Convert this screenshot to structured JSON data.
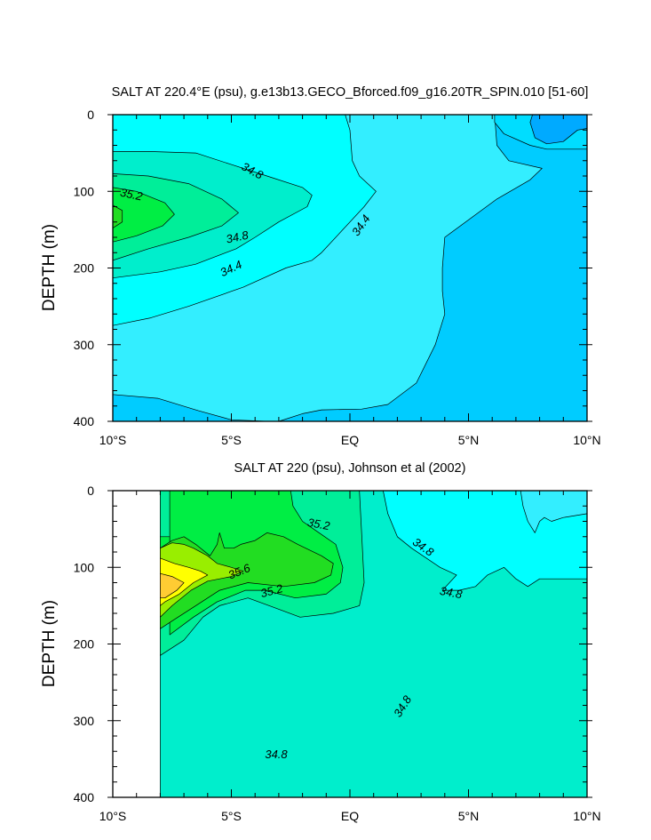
{
  "figure": {
    "colors": {
      "s33_6": "#00aaff",
      "s34_0": "#00ccff",
      "s34_2": "#00ddff",
      "s34_4": "#33eeff",
      "s34_6": "#00ffff",
      "s34_8": "#00eecc",
      "s35_0": "#00ee99",
      "s35_2": "#00ee44",
      "s35_4": "#22dd22",
      "s35_6": "#99ee00",
      "s35_8": "#ffff00",
      "s36_0": "#ffcc33",
      "line": "#000000"
    }
  },
  "chart_data": [
    {
      "type": "contour",
      "title": "SALT AT 220.4°E (psu), g.e13b13.GECO_Bforced.f09_g16.20TR_SPIN.010 [51-60]",
      "ylabel": "DEPTH (m)",
      "xlabel": "",
      "x_ticks": [
        {
          "value": -10,
          "label": "10°S"
        },
        {
          "value": -5,
          "label": "5°S"
        },
        {
          "value": 0,
          "label": "EQ"
        },
        {
          "value": 5,
          "label": "5°N"
        },
        {
          "value": 10,
          "label": "10°N"
        }
      ],
      "y_ticks": [
        0,
        100,
        200,
        300,
        400
      ],
      "xlim": [
        -10,
        10
      ],
      "ylim": [
        0,
        400
      ],
      "y_inverted": true,
      "data_extent_lat": [
        -10,
        10
      ],
      "contour_labels": [
        "34.8",
        "35.2",
        "34.8",
        "34.4",
        "34.4"
      ],
      "regions": [
        {
          "level": 34.0,
          "color_key": "s34_0",
          "points": [
            [
              -10,
              0
            ],
            [
              10,
              0
            ],
            [
              10,
              400
            ],
            [
              -10,
              400
            ]
          ]
        },
        {
          "level": 34.4,
          "color_key": "s34_4",
          "points": [
            [
              -10,
              0
            ],
            [
              6.1,
              0
            ],
            [
              6.2,
              40
            ],
            [
              6.7,
              60
            ],
            [
              8.1,
              70
            ],
            [
              7.6,
              85
            ],
            [
              6.2,
              110
            ],
            [
              4.0,
              160
            ],
            [
              3.9,
              200
            ],
            [
              3.9,
              230
            ],
            [
              4.0,
              260
            ],
            [
              3.6,
              300
            ],
            [
              2.8,
              350
            ],
            [
              1.6,
              378
            ],
            [
              0.5,
              384
            ],
            [
              -1.2,
              385
            ],
            [
              -2.0,
              390
            ],
            [
              -3.0,
              400
            ],
            [
              -3.5,
              400
            ],
            [
              -5.0,
              398
            ],
            [
              -6.4,
              386
            ],
            [
              -8.1,
              370
            ],
            [
              -10,
              365
            ]
          ]
        },
        {
          "level": 34.6,
          "color_key": "s34_6",
          "points": [
            [
              -10,
              0
            ],
            [
              -0.2,
              0
            ],
            [
              0,
              20
            ],
            [
              0.1,
              60
            ],
            [
              0.4,
              80
            ],
            [
              1.1,
              100
            ],
            [
              0.6,
              120
            ],
            [
              -0.3,
              150
            ],
            [
              -1.2,
              180
            ],
            [
              -1.6,
              190
            ],
            [
              -2.7,
              200
            ],
            [
              -4.5,
              225
            ],
            [
              -6.8,
              250
            ],
            [
              -8.4,
              265
            ],
            [
              -10,
              275
            ]
          ]
        },
        {
          "level": 34.8,
          "color_key": "s34_8",
          "points": [
            [
              -10,
              48
            ],
            [
              -8.5,
              48
            ],
            [
              -6.5,
              50
            ],
            [
              -5.0,
              65
            ],
            [
              -3.5,
              80
            ],
            [
              -2.0,
              95
            ],
            [
              -1.6,
              105
            ],
            [
              -1.8,
              120
            ],
            [
              -3.0,
              140
            ],
            [
              -4.0,
              160
            ],
            [
              -4.8,
              175
            ],
            [
              -6.5,
              195
            ],
            [
              -8.0,
              205
            ],
            [
              -10,
              213
            ]
          ]
        },
        {
          "level": 35.0,
          "color_key": "s35_0",
          "points": [
            [
              -10,
              77
            ],
            [
              -8.5,
              80
            ],
            [
              -6.8,
              90
            ],
            [
              -5.4,
              110
            ],
            [
              -4.7,
              128
            ],
            [
              -5.4,
              145
            ],
            [
              -6.8,
              160
            ],
            [
              -8.5,
              175
            ],
            [
              -10,
              190
            ]
          ]
        },
        {
          "level": 35.2,
          "color_key": "s35_2",
          "points": [
            [
              -10,
              95
            ],
            [
              -9.0,
              100
            ],
            [
              -7.8,
              115
            ],
            [
              -7.4,
              130
            ],
            [
              -7.9,
              145
            ],
            [
              -9.0,
              158
            ],
            [
              -10,
              166
            ]
          ]
        },
        {
          "level": 35.4,
          "color_key": "s35_4",
          "points": [
            [
              -10,
              118
            ],
            [
              -9.6,
              125
            ],
            [
              -9.6,
              140
            ],
            [
              -10,
              148
            ]
          ]
        },
        {
          "level": 33.8,
          "color_key": "s34_2",
          "points": [
            [
              6.1,
              0
            ],
            [
              10,
              0
            ],
            [
              10,
              45
            ],
            [
              8.3,
              45
            ],
            [
              7.6,
              40
            ],
            [
              6.5,
              25
            ],
            [
              6.1,
              10
            ]
          ]
        },
        {
          "level": 33.6,
          "color_key": "s33_6",
          "points": [
            [
              7.7,
              0
            ],
            [
              10,
              0
            ],
            [
              10,
              18
            ],
            [
              9.6,
              20
            ],
            [
              9.0,
              35
            ],
            [
              8.3,
              38
            ],
            [
              7.8,
              30
            ],
            [
              7.6,
              10
            ]
          ]
        }
      ]
    },
    {
      "type": "contour",
      "title": "SALT AT 220 (psu), Johnson et al (2002)",
      "ylabel": "DEPTH (m)",
      "xlabel": "",
      "x_ticks": [
        {
          "value": -10,
          "label": "10°S"
        },
        {
          "value": -5,
          "label": "5°S"
        },
        {
          "value": 0,
          "label": "EQ"
        },
        {
          "value": 5,
          "label": "5°N"
        },
        {
          "value": 10,
          "label": "10°N"
        }
      ],
      "y_ticks": [
        0,
        100,
        200,
        300,
        400
      ],
      "xlim": [
        -10,
        10
      ],
      "ylim": [
        0,
        400
      ],
      "y_inverted": true,
      "data_extent_lat": [
        -8,
        10
      ],
      "contour_labels": [
        "35.2",
        "34.8",
        "35.6",
        "35.2",
        "34.8",
        "34.8",
        "34.8"
      ],
      "regions": [
        {
          "level": 34.8,
          "color_key": "s34_8",
          "points": [
            [
              -8,
              0
            ],
            [
              10,
              0
            ],
            [
              10,
              400
            ],
            [
              -8,
              400
            ]
          ]
        },
        {
          "level": 34.6,
          "color_key": "s34_6",
          "points": [
            [
              1.4,
              0
            ],
            [
              10,
              0
            ],
            [
              10,
              115
            ],
            [
              8.0,
              115
            ],
            [
              7.5,
              125
            ],
            [
              7.0,
              115
            ],
            [
              6.5,
              100
            ],
            [
              5.8,
              110
            ],
            [
              5.3,
              125
            ],
            [
              4.6,
              130
            ],
            [
              3.9,
              130
            ],
            [
              4.5,
              110
            ],
            [
              3.8,
              100
            ],
            [
              2.6,
              75
            ],
            [
              2.0,
              60
            ],
            [
              1.6,
              30
            ]
          ]
        },
        {
          "level": 34.4,
          "color_key": "s34_4",
          "points": [
            [
              7.2,
              0
            ],
            [
              10,
              0
            ],
            [
              10,
              30
            ],
            [
              9.0,
              35
            ],
            [
              8.5,
              40
            ],
            [
              8.2,
              35
            ],
            [
              8.0,
              40
            ],
            [
              7.8,
              55
            ],
            [
              7.5,
              40
            ],
            [
              7.3,
              20
            ]
          ]
        },
        {
          "level": 35.0,
          "color_key": "s35_0",
          "points": [
            [
              -8,
              0
            ],
            [
              0.4,
              0
            ],
            [
              0.5,
              60
            ],
            [
              0.6,
              120
            ],
            [
              0.4,
              150
            ],
            [
              -0.7,
              160
            ],
            [
              -2.1,
              165
            ],
            [
              -3.4,
              150
            ],
            [
              -4.3,
              140
            ],
            [
              -5.5,
              150
            ],
            [
              -6.2,
              165
            ],
            [
              -7.0,
              195
            ],
            [
              -8,
              215
            ]
          ]
        },
        {
          "level": 35.2,
          "color_key": "s35_2",
          "points": [
            [
              -7.6,
              0
            ],
            [
              -2.5,
              0
            ],
            [
              -2.4,
              20
            ],
            [
              -2.0,
              40
            ],
            [
              -1.3,
              55
            ],
            [
              -0.6,
              70
            ],
            [
              -0.3,
              100
            ],
            [
              -0.4,
              120
            ],
            [
              -1.0,
              135
            ],
            [
              -2.3,
              140
            ],
            [
              -3.6,
              130
            ],
            [
              -4.4,
              130
            ],
            [
              -5.6,
              145
            ],
            [
              -6.6,
              165
            ],
            [
              -7.6,
              188
            ]
          ]
        },
        {
          "level": 35.2,
          "color_key": "s35_2",
          "points": [
            [
              -8,
              60
            ],
            [
              -7.6,
              60
            ],
            [
              -7.6,
              150
            ],
            [
              -8,
              150
            ]
          ]
        },
        {
          "level": 35.4,
          "color_key": "s35_4",
          "points": [
            [
              -8,
              75
            ],
            [
              -7.5,
              65
            ],
            [
              -7.0,
              60
            ],
            [
              -6.5,
              70
            ],
            [
              -5.9,
              85
            ],
            [
              -5.6,
              70
            ],
            [
              -5.5,
              55
            ],
            [
              -5.3,
              75
            ],
            [
              -4.9,
              75
            ],
            [
              -4.6,
              70
            ],
            [
              -4.0,
              65
            ],
            [
              -3.5,
              55
            ],
            [
              -2.8,
              60
            ],
            [
              -2.2,
              70
            ],
            [
              -1.2,
              85
            ],
            [
              -0.7,
              95
            ],
            [
              -0.8,
              110
            ],
            [
              -1.5,
              120
            ],
            [
              -2.8,
              125
            ],
            [
              -4.3,
              120
            ],
            [
              -5.5,
              130
            ],
            [
              -6.5,
              150
            ],
            [
              -7.5,
              170
            ],
            [
              -8,
              180
            ]
          ]
        },
        {
          "level": 35.6,
          "color_key": "s35_6",
          "points": [
            [
              -8,
              75
            ],
            [
              -7.5,
              68
            ],
            [
              -7.0,
              70
            ],
            [
              -6.6,
              75
            ],
            [
              -6.0,
              85
            ],
            [
              -5.6,
              95
            ],
            [
              -5.0,
              100
            ],
            [
              -4.5,
              105
            ],
            [
              -5.0,
              112
            ],
            [
              -6.0,
              118
            ],
            [
              -6.7,
              130
            ],
            [
              -7.5,
              150
            ],
            [
              -8,
              165
            ]
          ]
        },
        {
          "level": 35.8,
          "color_key": "s35_8",
          "points": [
            [
              -8,
              88
            ],
            [
              -7.4,
              95
            ],
            [
              -6.8,
              100
            ],
            [
              -6.3,
              105
            ],
            [
              -6.0,
              110
            ],
            [
              -6.6,
              120
            ],
            [
              -7.2,
              135
            ],
            [
              -7.8,
              145
            ],
            [
              -8,
              150
            ]
          ]
        },
        {
          "level": 36.0,
          "color_key": "s36_0",
          "points": [
            [
              -8,
              108
            ],
            [
              -7.5,
              112
            ],
            [
              -7.0,
              120
            ],
            [
              -7.3,
              130
            ],
            [
              -7.8,
              140
            ],
            [
              -8,
              140
            ]
          ]
        }
      ]
    }
  ]
}
